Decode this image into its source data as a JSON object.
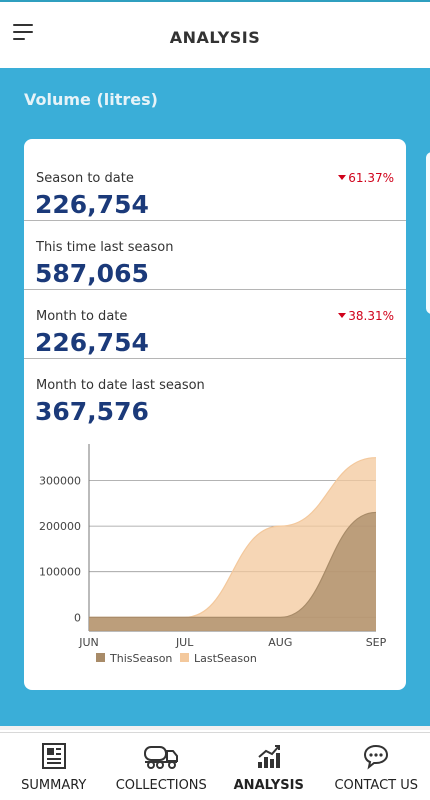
{
  "header": {
    "title": "ANALYSIS"
  },
  "section": {
    "title": "Volume (litres)"
  },
  "metrics": [
    {
      "label": "Season to date",
      "value": "226,754",
      "delta": "61.37%"
    },
    {
      "label": "This time last season",
      "value": "587,065",
      "delta": ""
    },
    {
      "label": "Month to date",
      "value": "226,754",
      "delta": "38.31%"
    },
    {
      "label": "Month to date last season",
      "value": "367,576",
      "delta": ""
    }
  ],
  "colors": {
    "accent": "#3aaed8",
    "value_text": "#1b3a7a",
    "delta_down": "#d0021b",
    "this_season": "#a88b68",
    "last_season": "#f3c89c"
  },
  "chart_data": {
    "type": "area",
    "categories": [
      "JUN",
      "JUL",
      "AUG",
      "SEP"
    ],
    "series": [
      {
        "name": "ThisSeason",
        "values": [
          0,
          0,
          0,
          230000
        ]
      },
      {
        "name": "LastSeason",
        "values": [
          0,
          0,
          200000,
          350000
        ]
      }
    ],
    "yticks": [
      0,
      100000,
      200000,
      300000
    ],
    "ylim": [
      -30000,
      380000
    ],
    "grid": true,
    "legend": "bottom"
  },
  "nav": {
    "items": [
      {
        "label": "SUMMARY",
        "icon": "newspaper-icon"
      },
      {
        "label": "COLLECTIONS",
        "icon": "tanker-truck-icon"
      },
      {
        "label": "ANALYSIS",
        "icon": "bar-chart-icon"
      },
      {
        "label": "CONTACT US",
        "icon": "chat-bubble-icon"
      }
    ],
    "active": "ANALYSIS"
  }
}
